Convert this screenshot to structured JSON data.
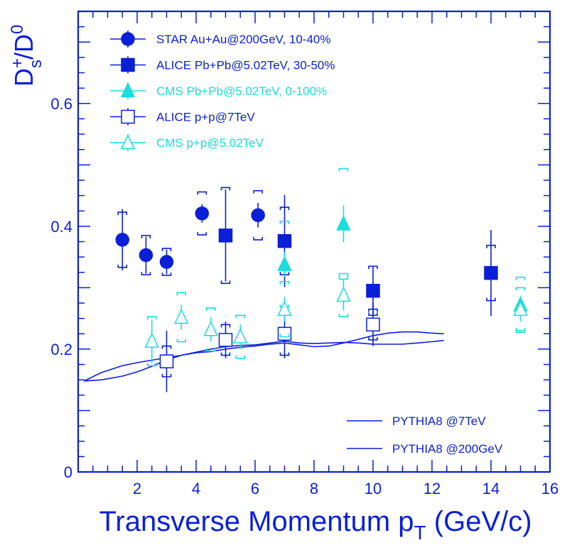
{
  "chart_data": {
    "type": "scatter",
    "xlabel": "Transverse Momentum p",
    "xlabel_sub": "T",
    "xlabel_suffix": " (GeV/c)",
    "ylabel_main": "D",
    "ylabel_sup": "+",
    "ylabel_sub": "s",
    "ylabel_rest": "/D",
    "ylabel_sup2": "0",
    "xlim": [
      0,
      16
    ],
    "ylim": [
      0,
      0.75
    ],
    "x_ticks": [
      2,
      4,
      6,
      8,
      10,
      12,
      14,
      16
    ],
    "x_tick_labels": [
      "2",
      "4",
      "6",
      "8",
      "10",
      "12",
      "14",
      "16"
    ],
    "y_ticks": [
      0,
      0.2,
      0.4,
      0.6
    ],
    "y_tick_labels": [
      "0",
      "0.2",
      "0.4",
      "0.6"
    ],
    "colors": {
      "blue": "#0a1fd8",
      "cyan": "#19dede",
      "axis": "#0a1fd8"
    },
    "series": [
      {
        "name": "STAR Au+Au@200GeV, 10-40%",
        "marker": "circle",
        "filled": true,
        "color": "#0a1fd8",
        "points": [
          {
            "x": 1.5,
            "y": 0.378,
            "stat": 0.05,
            "sys": 0.045
          },
          {
            "x": 2.3,
            "y": 0.353,
            "stat": 0.03,
            "sys": 0.032
          },
          {
            "x": 3.0,
            "y": 0.342,
            "stat": 0.02,
            "sys": 0.022
          },
          {
            "x": 4.2,
            "y": 0.421,
            "stat": 0.015,
            "sys": 0.035
          },
          {
            "x": 6.1,
            "y": 0.418,
            "stat": 0.02,
            "sys": 0.04
          }
        ]
      },
      {
        "name": "ALICE Pb+Pb@5.02TeV, 30-50%",
        "marker": "square",
        "filled": true,
        "color": "#0a1fd8",
        "points": [
          {
            "x": 5.0,
            "y": 0.385,
            "stat": 0.075,
            "sys": 0.078
          },
          {
            "x": 7.0,
            "y": 0.376,
            "stat": 0.075,
            "sys": 0.055
          },
          {
            "x": 10.0,
            "y": 0.295,
            "stat": 0.04,
            "sys": 0.04
          },
          {
            "x": 14.0,
            "y": 0.324,
            "stat": 0.07,
            "sys": 0.045
          }
        ]
      },
      {
        "name": "CMS Pb+Pb@5.02TeV, 0-100%",
        "marker": "triangle",
        "filled": true,
        "color": "#19dede",
        "points": [
          {
            "x": 7.0,
            "y": 0.338,
            "stat": 0.02,
            "sys": 0.07
          },
          {
            "x": 9.0,
            "y": 0.404,
            "stat": 0.03,
            "sys": 0.09
          },
          {
            "x": 15.0,
            "y": 0.272,
            "stat": 0.015,
            "sys": 0.045
          }
        ]
      },
      {
        "name": "ALICE p+p@7TeV",
        "marker": "square",
        "filled": false,
        "color": "#0a1fd8",
        "points": [
          {
            "x": 3.0,
            "y": 0.18,
            "stat": 0.05,
            "sys": 0.025
          },
          {
            "x": 5.0,
            "y": 0.215,
            "stat": 0.03,
            "sys": 0.025
          },
          {
            "x": 7.0,
            "y": 0.225,
            "stat": 0.04,
            "sys": 0.035
          },
          {
            "x": 10.0,
            "y": 0.24,
            "stat": 0.035,
            "sys": 0.025
          }
        ]
      },
      {
        "name": "CMS p+p@5.02TeV",
        "marker": "triangle",
        "filled": false,
        "color": "#19dede",
        "points": [
          {
            "x": 2.5,
            "y": 0.213,
            "stat": 0.035,
            "sys": 0.04
          },
          {
            "x": 3.5,
            "y": 0.252,
            "stat": 0.02,
            "sys": 0.04
          },
          {
            "x": 4.5,
            "y": 0.232,
            "stat": 0.02,
            "sys": 0.035
          },
          {
            "x": 5.5,
            "y": 0.22,
            "stat": 0.02,
            "sys": 0.035
          },
          {
            "x": 7.0,
            "y": 0.265,
            "stat": 0.02,
            "sys": 0.045
          },
          {
            "x": 9.0,
            "y": 0.288,
            "stat": 0.025,
            "sys": 0.035
          },
          {
            "x": 15.0,
            "y": 0.265,
            "stat": 0.02,
            "sys": 0.035
          }
        ]
      }
    ],
    "curves": [
      {
        "name": "PYTHIA8 @7TeV",
        "color": "#0a1fd8",
        "x": [
          0.2,
          0.8,
          1.5,
          2.0,
          2.5,
          3.0,
          3.5,
          4.0,
          4.5,
          5.0,
          5.5,
          6.0,
          6.5,
          7.0,
          7.5,
          8.0,
          8.5,
          9.0,
          9.5,
          10.0,
          10.5,
          11.0,
          11.5,
          12.0,
          12.4
        ],
        "y": [
          0.148,
          0.15,
          0.156,
          0.163,
          0.172,
          0.182,
          0.19,
          0.195,
          0.2,
          0.204,
          0.206,
          0.207,
          0.21,
          0.213,
          0.21,
          0.209,
          0.21,
          0.211,
          0.21,
          0.208,
          0.208,
          0.208,
          0.21,
          0.212,
          0.214
        ]
      },
      {
        "name": "PYTHIA8 @200GeV",
        "color": "#0a1fd8",
        "x": [
          0.2,
          0.8,
          1.5,
          2.0,
          2.5,
          3.0,
          3.5,
          4.0,
          4.5,
          5.0,
          5.5,
          6.0,
          6.5,
          7.0,
          7.5,
          8.0,
          8.5,
          9.0,
          9.5,
          10.0,
          10.5,
          11.0,
          11.5,
          12.0,
          12.4
        ],
        "y": [
          0.148,
          0.162,
          0.173,
          0.178,
          0.182,
          0.186,
          0.19,
          0.194,
          0.196,
          0.2,
          0.203,
          0.205,
          0.208,
          0.21,
          0.207,
          0.204,
          0.205,
          0.21,
          0.216,
          0.222,
          0.226,
          0.228,
          0.228,
          0.226,
          0.225
        ]
      }
    ]
  }
}
